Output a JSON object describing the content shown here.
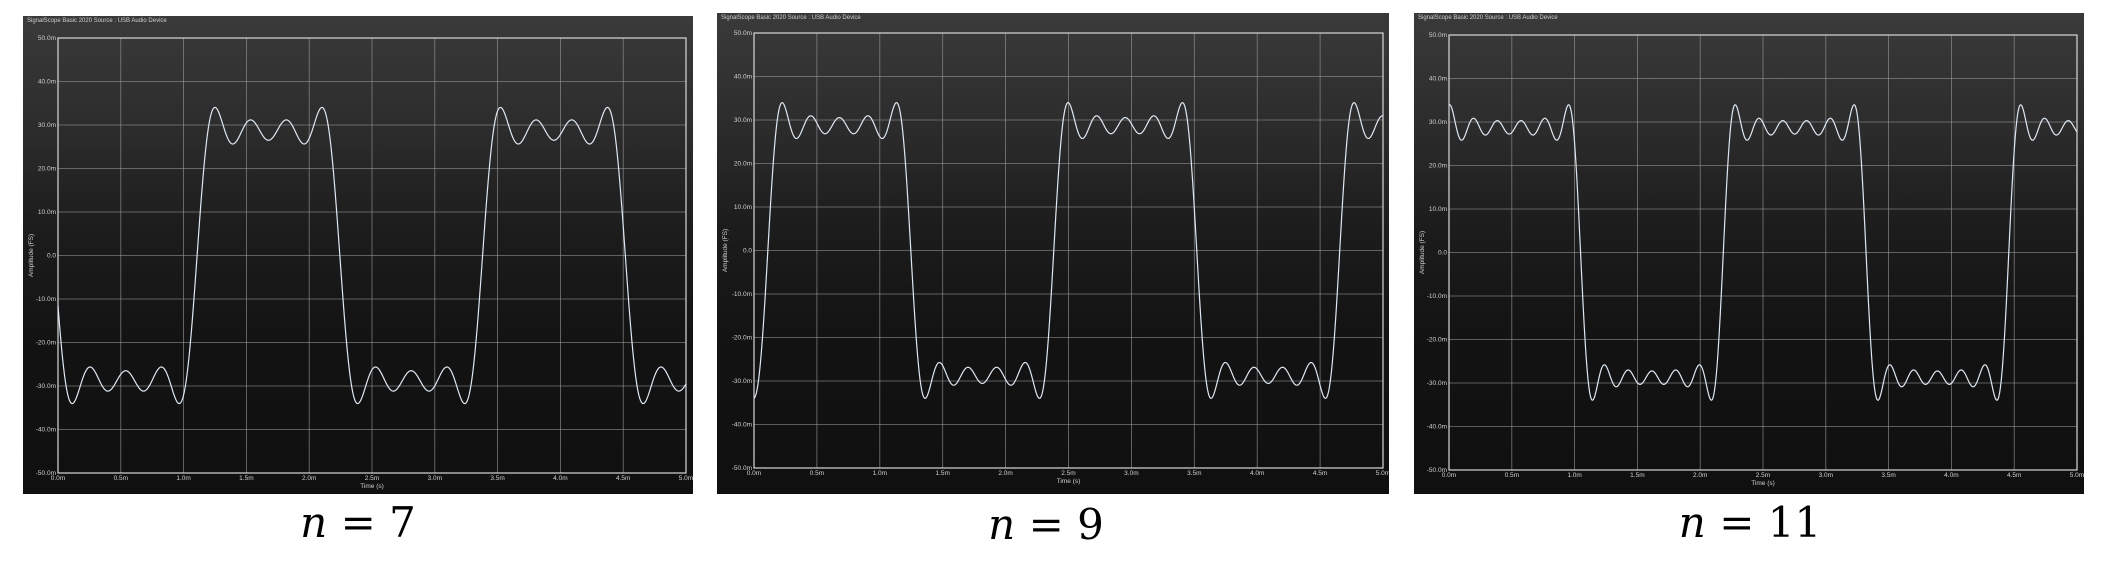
{
  "chart_data": [
    {
      "type": "line",
      "title": "SignalScope Basic 2020 Source : USB Audio Device",
      "caption_var": "n",
      "caption_eq": "=",
      "caption_value": "7",
      "xlabel": "Time (s)",
      "ylabel": "Amplitude (FS)",
      "xlim": [
        0,
        0.005
      ],
      "ylim": [
        -0.05,
        0.05
      ],
      "x_ticks": [
        "0.0m",
        "0.5m",
        "1.0m",
        "1.5m",
        "2.0m",
        "2.5m",
        "3.0m",
        "3.5m",
        "4.0m",
        "4.5m",
        "5.0m"
      ],
      "y_ticks": [
        "50.0m",
        "40.0m",
        "30.0m",
        "20.0m",
        "10.0m",
        "0.0",
        "-10.0m",
        "-20.0m",
        "-30.0m",
        "-40.0m",
        "-50.0m"
      ],
      "grid": true,
      "line_color": "#dfe8f2",
      "series": [
        {
          "harmonics": 7,
          "amplitude": 0.0366,
          "period": 0.002273,
          "phase": 0.5128,
          "x_start": 0.0,
          "x_end": 0.005
        }
      ]
    },
    {
      "type": "line",
      "title": "SignalScope Basic 2020 Source : USB Audio Device",
      "caption_var": "n",
      "caption_eq": "=",
      "caption_value": "9",
      "xlabel": "Time (s)",
      "ylabel": "Amplitude (FS)",
      "xlim": [
        0,
        0.005
      ],
      "ylim": [
        -0.05,
        0.05
      ],
      "x_ticks": [
        "0.0m",
        "0.5m",
        "1.0m",
        "1.5m",
        "2.0m",
        "2.5m",
        "3.0m",
        "3.5m",
        "4.0m",
        "4.5m",
        "5.0m"
      ],
      "y_ticks": [
        "50.0m",
        "40.0m",
        "30.0m",
        "20.0m",
        "10.0m",
        "0.0",
        "-10.0m",
        "-20.0m",
        "-30.0m",
        "-40.0m",
        "-50.0m"
      ],
      "grid": true,
      "line_color": "#dfe8f2",
      "series": [
        {
          "harmonics": 9,
          "amplitude": 0.0366,
          "period": 0.002273,
          "phase": 0.9516,
          "x_start": 0.0,
          "x_end": 0.005
        }
      ]
    },
    {
      "type": "line",
      "title": "SignalScope Basic 2020 Source : USB Audio Device",
      "caption_var": "n",
      "caption_eq": "=",
      "caption_value": "11",
      "xlabel": "Time (s)",
      "ylabel": "Amplitude (FS)",
      "xlim": [
        0,
        0.005
      ],
      "ylim": [
        -0.05,
        0.05
      ],
      "x_ticks": [
        "0.0m",
        "0.5m",
        "1.0m",
        "1.5m",
        "2.0m",
        "2.5m",
        "3.0m",
        "3.5m",
        "4.0m",
        "4.5m",
        "5.0m"
      ],
      "y_ticks": [
        "50.0m",
        "40.0m",
        "30.0m",
        "20.0m",
        "10.0m",
        "0.0",
        "-10.0m",
        "-20.0m",
        "-30.0m",
        "-40.0m",
        "-50.0m"
      ],
      "grid": true,
      "line_color": "#dfe8f2",
      "series": [
        {
          "harmonics": 11,
          "amplitude": 0.0366,
          "period": 0.002273,
          "phase": 0.0392,
          "x_start": 0.0,
          "x_end": 0.005
        }
      ]
    }
  ]
}
